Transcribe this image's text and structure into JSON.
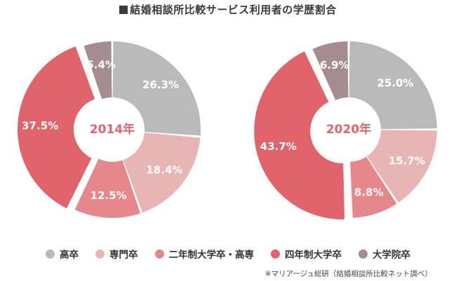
{
  "title": "結婚相談所比較サービス利用者の学歴割合",
  "source": "※マリアージュ総研（結婚相談所比較ネット調べ）",
  "legend": [
    {
      "label": "高卒",
      "color": "#bababa"
    },
    {
      "label": "専門卒",
      "color": "#e8b5b5"
    },
    {
      "label": "二年制大学卒・高専",
      "color": "#e6888b"
    },
    {
      "label": "四年制大学卒",
      "color": "#e0646a"
    },
    {
      "label": "大学院卒",
      "color": "#a48c8f"
    }
  ],
  "chart_data": [
    {
      "type": "pie",
      "title": "2014年",
      "categories": [
        "高卒",
        "専門卒",
        "二年制大学卒・高専",
        "四年制大学卒",
        "大学院卒"
      ],
      "values": [
        26.3,
        18.4,
        12.5,
        37.5,
        5.4
      ],
      "labels": [
        "26.3%",
        "18.4%",
        "12.5%",
        "37.5%",
        "5.4%"
      ],
      "exploded": "四年制大学卒",
      "center_color": "#e0646a"
    },
    {
      "type": "pie",
      "title": "2020年",
      "categories": [
        "高卒",
        "専門卒",
        "二年制大学卒・高専",
        "四年制大学卒",
        "大学院卒"
      ],
      "values": [
        25.0,
        15.7,
        8.8,
        43.7,
        6.9
      ],
      "labels": [
        "25.0%",
        "15.7%",
        "8.8%",
        "43.7%",
        "6.9%"
      ],
      "exploded": "四年制大学卒",
      "center_color": "#e0646a"
    }
  ]
}
